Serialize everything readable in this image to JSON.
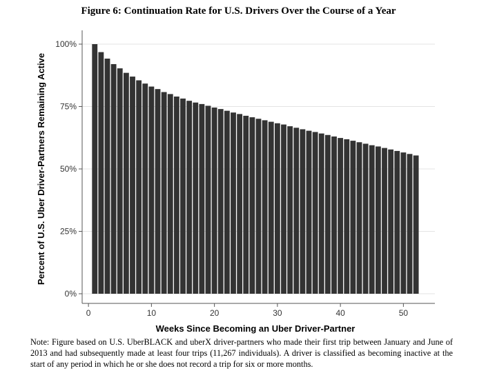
{
  "figure": {
    "title": "Figure 6: Continuation Rate for U.S. Drivers Over the Course of a Year",
    "note": "Note: Figure based on U.S. UberBLACK and uberX driver-partners who made their first trip between January and June of 2013 and had subsequently made at least four trips (11,267 individuals). A driver is classified as becoming inactive at the start of any period in which he or she does not record a trip for six or more months."
  },
  "chart_data": {
    "type": "bar",
    "title": "Figure 6: Continuation Rate for U.S. Drivers Over the Course of a Year",
    "xlabel": "Weeks Since Becoming an Uber Driver-Partner",
    "ylabel": "Percent of U.S. Uber Driver-Partners Remaining Active",
    "x": [
      1,
      2,
      3,
      4,
      5,
      6,
      7,
      8,
      9,
      10,
      11,
      12,
      13,
      14,
      15,
      16,
      17,
      18,
      19,
      20,
      21,
      22,
      23,
      24,
      25,
      26,
      27,
      28,
      29,
      30,
      31,
      32,
      33,
      34,
      35,
      36,
      37,
      38,
      39,
      40,
      41,
      42,
      43,
      44,
      45,
      46,
      47,
      48,
      49,
      50,
      51,
      52
    ],
    "values": [
      100,
      96.8,
      94.2,
      92.0,
      90.3,
      88.5,
      87.0,
      85.5,
      84.2,
      83.0,
      82.0,
      80.8,
      80.0,
      79.0,
      78.2,
      77.3,
      76.6,
      76.0,
      75.3,
      74.6,
      74.0,
      73.3,
      72.6,
      72.0,
      71.3,
      70.7,
      70.1,
      69.5,
      68.9,
      68.3,
      67.8,
      67.1,
      66.5,
      65.9,
      65.3,
      64.8,
      64.2,
      63.6,
      63.0,
      62.4,
      61.9,
      61.3,
      60.7,
      60.1,
      59.5,
      59.0,
      58.4,
      57.8,
      57.2,
      56.6,
      56.0,
      55.4
    ],
    "xlim": [
      -1,
      55
    ],
    "ylim": [
      0,
      100
    ],
    "xticks": [
      0,
      10,
      20,
      30,
      40,
      50
    ],
    "yticks": [
      0,
      25,
      50,
      75,
      100
    ],
    "yticklabels": [
      "0%",
      "25%",
      "50%",
      "75%",
      "100%"
    ],
    "grid": true,
    "bar_color": "#333333",
    "grid_color": "#e3e3e3"
  }
}
